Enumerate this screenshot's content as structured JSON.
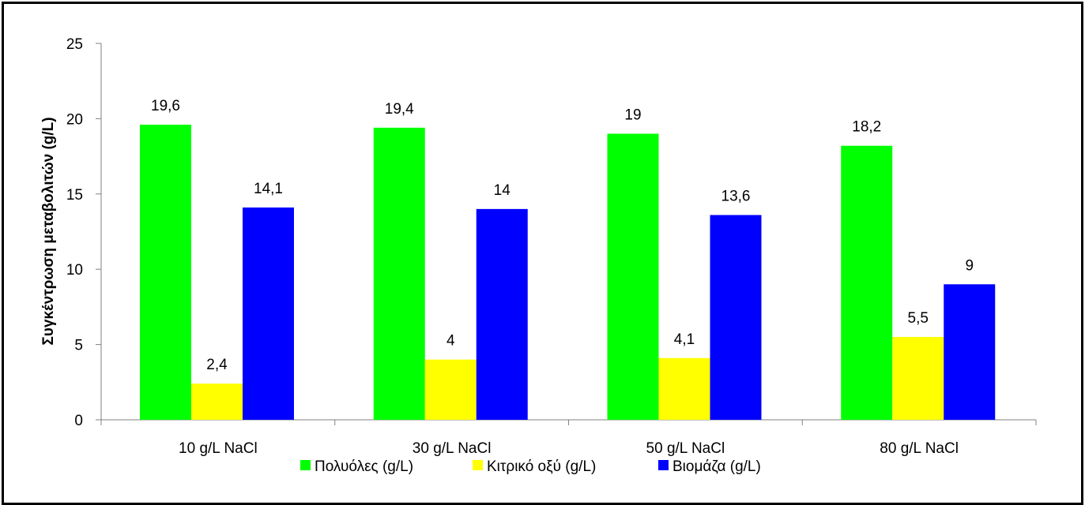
{
  "chart_data": {
    "type": "bar",
    "ylabel": "Συγκέντρωση μεταβολιτών (g/L)",
    "xlabel": "",
    "ylim": [
      0,
      25
    ],
    "yticks": [
      0,
      5,
      10,
      15,
      20,
      25
    ],
    "categories": [
      "10 g/L NaCl",
      "30 g/L NaCl",
      "50 g/L NaCl",
      "80 g/L NaCl"
    ],
    "series": [
      {
        "name": "Πολυόλες (g/L)",
        "color": "#00ff00",
        "values": [
          19.6,
          19.4,
          19,
          18.2
        ],
        "labels": [
          "19,6",
          "19,4",
          "19",
          "18,2"
        ]
      },
      {
        "name": "Κιτρικό οξύ (g/L)",
        "color": "#ffff00",
        "values": [
          2.4,
          4,
          4.1,
          5.5
        ],
        "labels": [
          "2,4",
          "4",
          "4,1",
          "5,5"
        ]
      },
      {
        "name": "Βιομάζα (g/L)",
        "color": "#0000ff",
        "values": [
          14.1,
          14,
          13.6,
          9
        ],
        "labels": [
          "14,1",
          "14",
          "13,6",
          "9"
        ]
      }
    ],
    "grid": false,
    "legend_position": "bottom"
  }
}
